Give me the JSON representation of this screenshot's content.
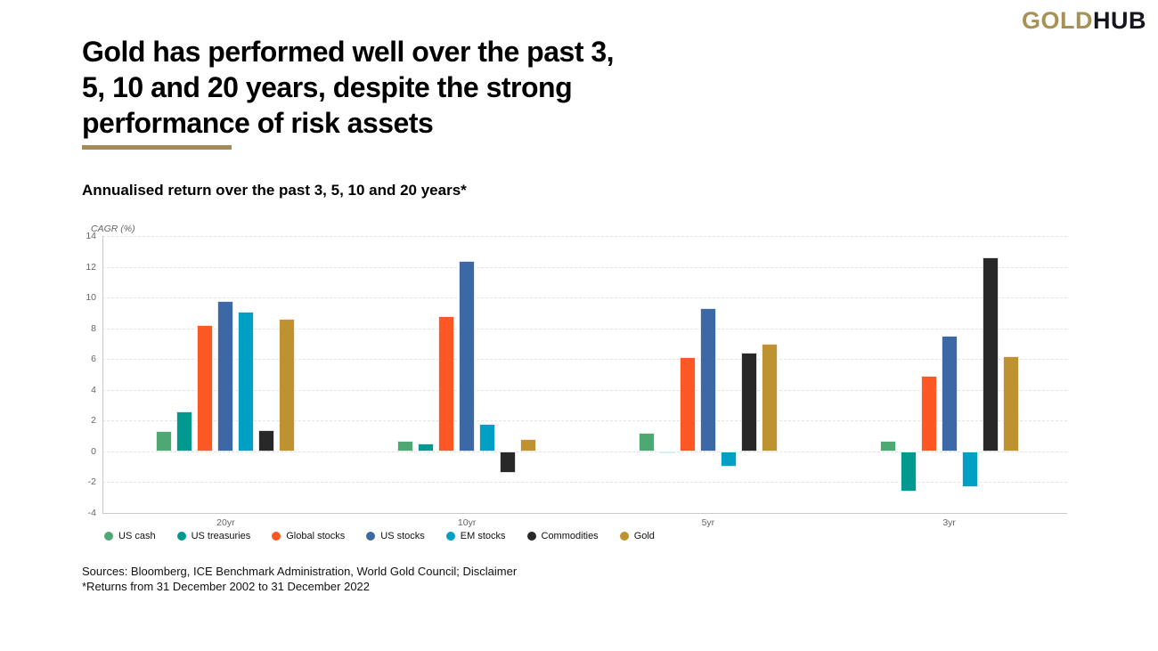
{
  "logo": {
    "gold": "GOLD",
    "hub": "HUB"
  },
  "title_lines": [
    "Gold has performed well over the past 3,",
    "5, 10 and 20 years, despite the strong",
    "performance of risk assets"
  ],
  "subtitle": "Annualised return over the past 3, 5, 10 and 20 years*",
  "footer": {
    "sources": "Sources: Bloomberg, ICE Benchmark Administration, World Gold Council; Disclaimer",
    "note": "*Returns from 31 December 2002 to 31 December 2022"
  },
  "colors": {
    "accent_gold": "#a38c54",
    "logo_gold": "#a89155",
    "logo_dark": "#16161e",
    "gridline": "#e4e4e4",
    "axis_line": "#c9c9c9",
    "axis_text": "#666666"
  },
  "chart_data": {
    "type": "bar",
    "axis_title": "CAGR (%)",
    "categories": [
      "20yr",
      "10yr",
      "5yr",
      "3yr"
    ],
    "series": [
      {
        "name": "US cash",
        "color": "#4ea873",
        "values": [
          1.3,
          0.7,
          1.2,
          0.7
        ]
      },
      {
        "name": "US treasuries",
        "color": "#00998f",
        "values": [
          2.6,
          0.5,
          -0.1,
          -2.6
        ]
      },
      {
        "name": "Global stocks",
        "color": "#fd5823",
        "values": [
          8.2,
          8.8,
          6.1,
          4.9
        ]
      },
      {
        "name": "US stocks",
        "color": "#3c68a6",
        "values": [
          9.8,
          12.4,
          9.3,
          7.5
        ]
      },
      {
        "name": "EM stocks",
        "color": "#009fc4",
        "values": [
          9.1,
          1.8,
          -1.0,
          -2.3
        ]
      },
      {
        "name": "Commodities",
        "color": "#282828",
        "values": [
          1.4,
          -1.4,
          6.4,
          12.6
        ]
      },
      {
        "name": "Gold",
        "color": "#bf9231",
        "values": [
          8.6,
          0.8,
          7.0,
          6.2
        ]
      }
    ],
    "ylim": [
      -4,
      14
    ],
    "ytick_step": 2,
    "grid": "horizontal-dashed",
    "legend_position": "bottom-left"
  }
}
